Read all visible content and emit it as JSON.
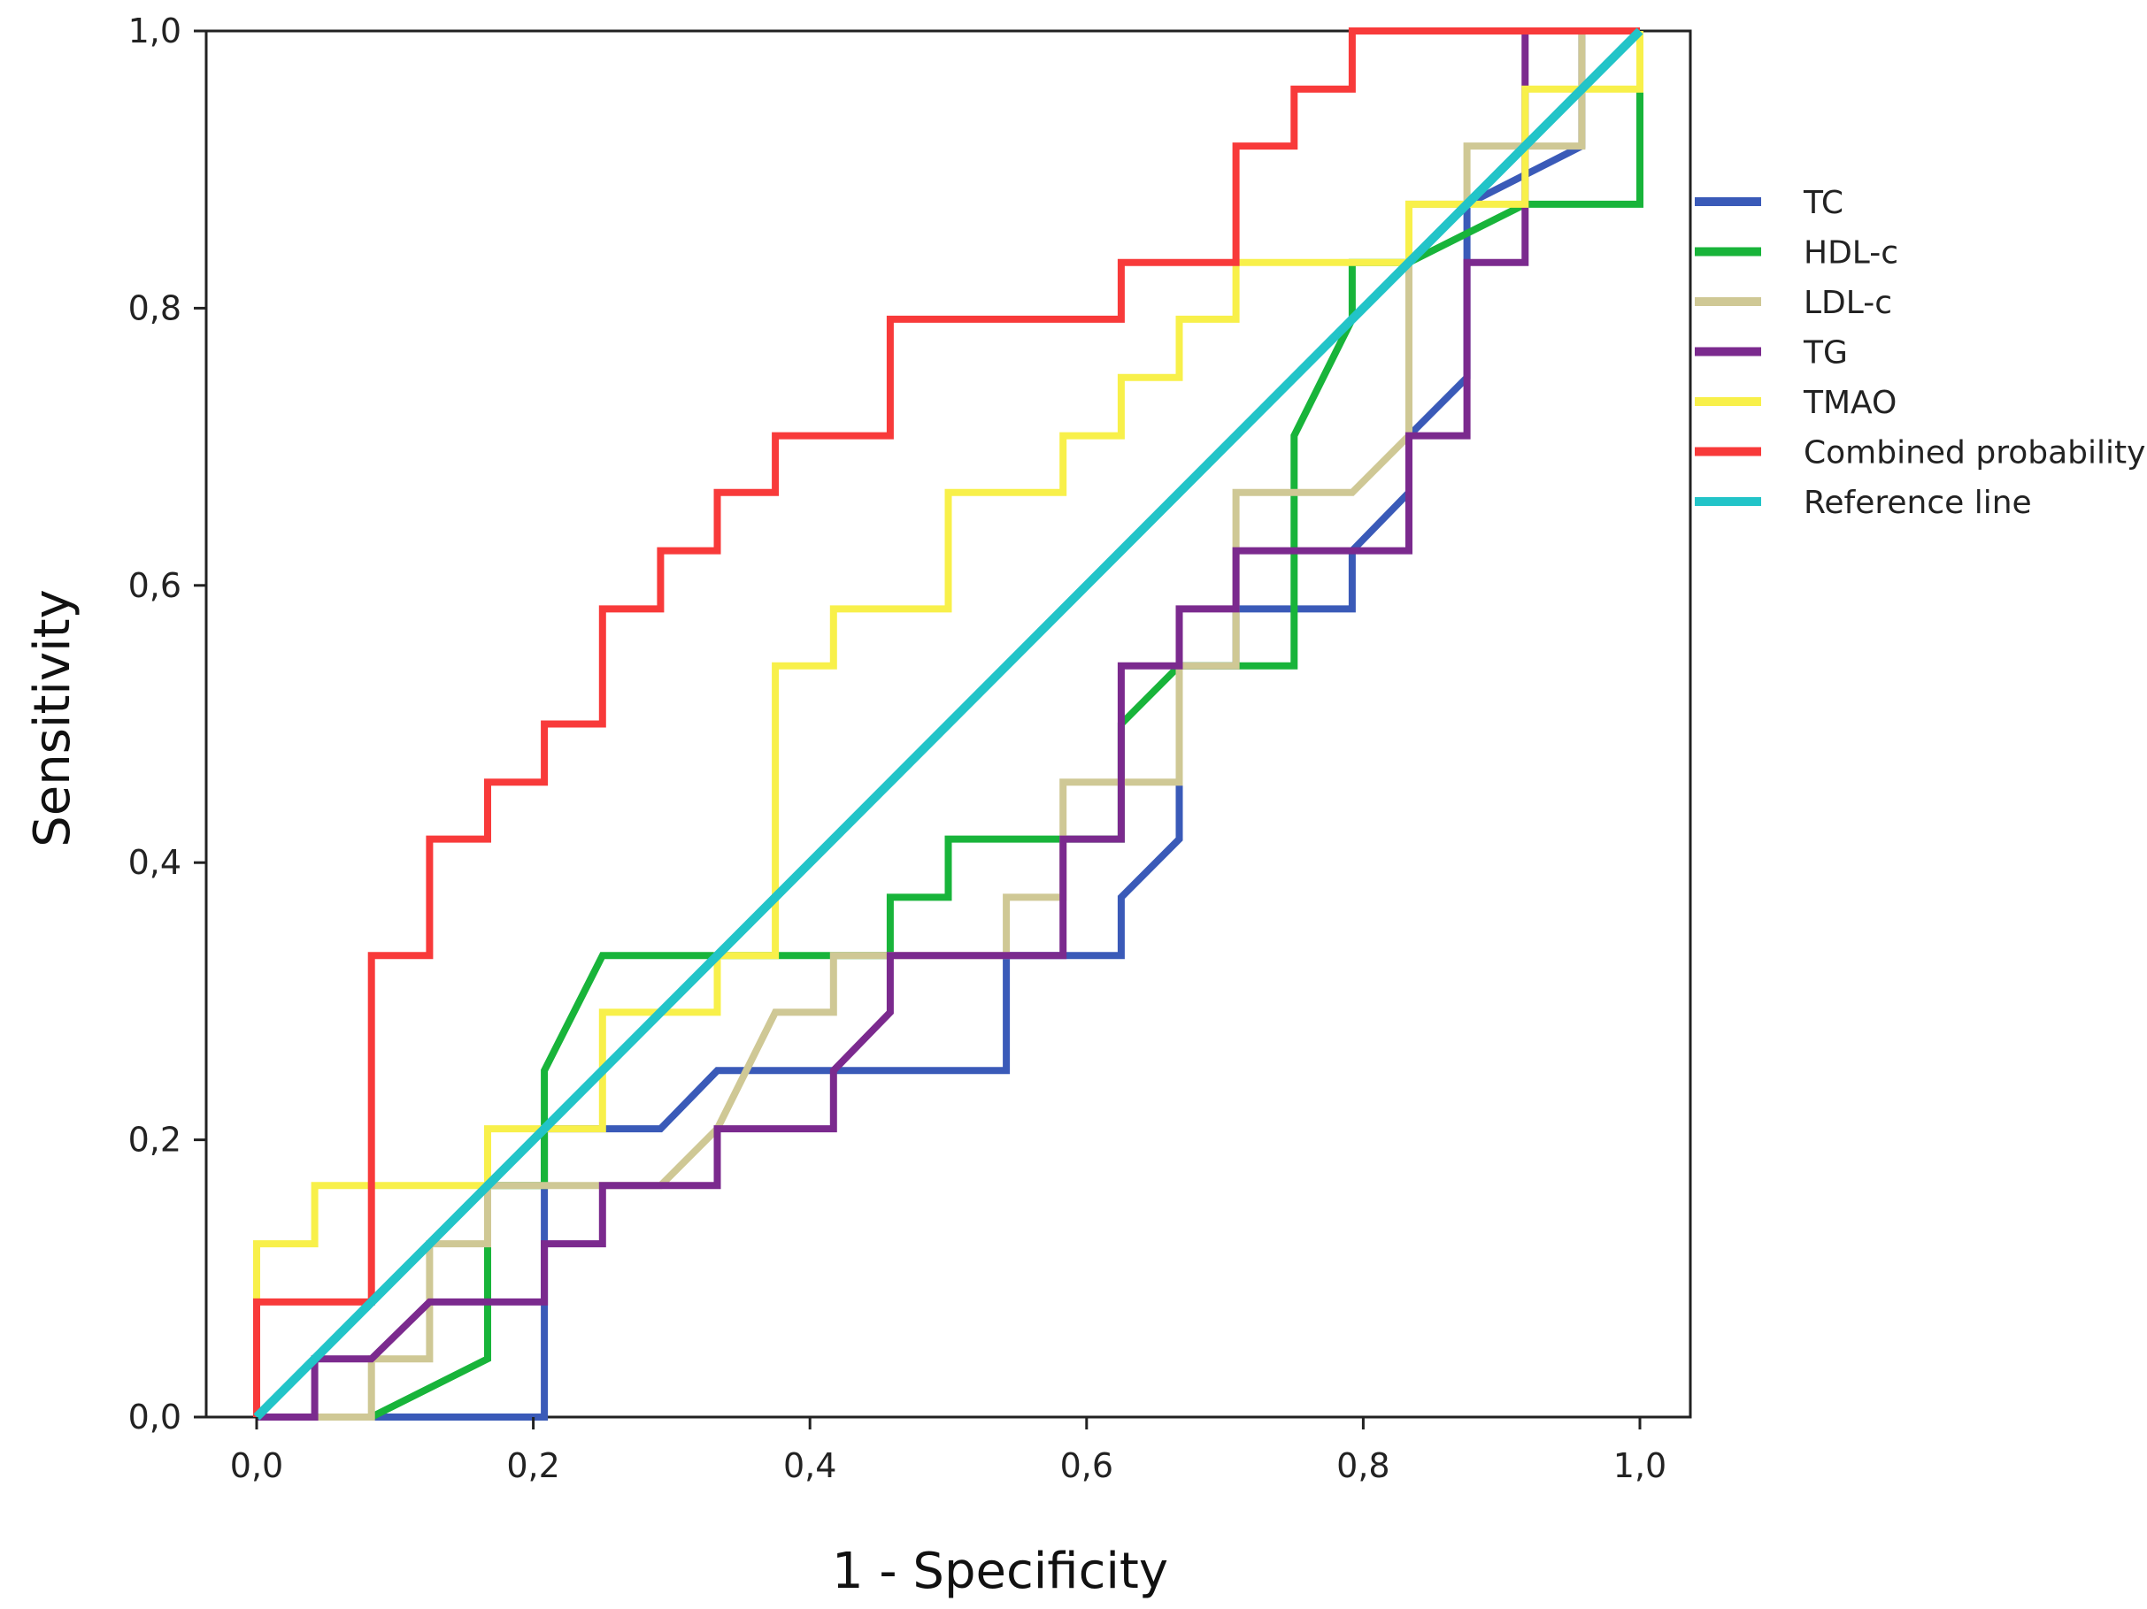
{
  "chart_data": {
    "type": "line",
    "title": "",
    "xlabel": "1 - Specificity",
    "ylabel": "Sensitivity",
    "xlim": [
      0,
      1
    ],
    "ylim": [
      0,
      1
    ],
    "xticks": [
      "0,0",
      "0,2",
      "0,4",
      "0,6",
      "0,8",
      "1,0"
    ],
    "yticks": [
      "0,0",
      "0,2",
      "0,4",
      "0,6",
      "0,8",
      "1,0"
    ],
    "tick_values": [
      0,
      0.2,
      0.4,
      0.6,
      0.8,
      1.0
    ],
    "legend_position": "right",
    "series": [
      {
        "name": "TC",
        "color": "#3a5ab8",
        "points": [
          [
            0,
            0
          ],
          [
            0.208,
            0
          ],
          [
            0.208,
            0.208
          ],
          [
            0.25,
            0.208
          ],
          [
            0.25,
            0.208
          ],
          [
            0.292,
            0.208
          ],
          [
            0.333,
            0.25
          ],
          [
            0.542,
            0.25
          ],
          [
            0.542,
            0.333
          ],
          [
            0.625,
            0.333
          ],
          [
            0.625,
            0.375
          ],
          [
            0.667,
            0.417
          ],
          [
            0.667,
            0.542
          ],
          [
            0.708,
            0.542
          ],
          [
            0.708,
            0.583
          ],
          [
            0.792,
            0.583
          ],
          [
            0.792,
            0.625
          ],
          [
            0.833,
            0.667
          ],
          [
            0.833,
            0.708
          ],
          [
            0.875,
            0.75
          ],
          [
            0.875,
            0.875
          ],
          [
            0.958,
            0.917
          ],
          [
            0.958,
            1.0
          ],
          [
            1.0,
            1.0
          ]
        ]
      },
      {
        "name": "HDL-c",
        "color": "#18b43a",
        "points": [
          [
            0,
            0
          ],
          [
            0.083,
            0
          ],
          [
            0.167,
            0.042
          ],
          [
            0.167,
            0.167
          ],
          [
            0.208,
            0.167
          ],
          [
            0.208,
            0.25
          ],
          [
            0.25,
            0.333
          ],
          [
            0.458,
            0.333
          ],
          [
            0.458,
            0.375
          ],
          [
            0.5,
            0.375
          ],
          [
            0.5,
            0.417
          ],
          [
            0.625,
            0.417
          ],
          [
            0.625,
            0.5
          ],
          [
            0.667,
            0.542
          ],
          [
            0.708,
            0.542
          ],
          [
            0.75,
            0.542
          ],
          [
            0.75,
            0.708
          ],
          [
            0.792,
            0.792
          ],
          [
            0.792,
            0.833
          ],
          [
            0.833,
            0.833
          ],
          [
            0.917,
            0.875
          ],
          [
            0.958,
            0.875
          ],
          [
            1.0,
            0.875
          ],
          [
            1.0,
            1.0
          ]
        ]
      },
      {
        "name": "LDL-c",
        "color": "#cfc895",
        "points": [
          [
            0,
            0
          ],
          [
            0.083,
            0
          ],
          [
            0.083,
            0.042
          ],
          [
            0.125,
            0.042
          ],
          [
            0.125,
            0.125
          ],
          [
            0.167,
            0.125
          ],
          [
            0.167,
            0.167
          ],
          [
            0.292,
            0.167
          ],
          [
            0.333,
            0.208
          ],
          [
            0.375,
            0.292
          ],
          [
            0.417,
            0.292
          ],
          [
            0.417,
            0.333
          ],
          [
            0.542,
            0.333
          ],
          [
            0.542,
            0.375
          ],
          [
            0.583,
            0.375
          ],
          [
            0.583,
            0.458
          ],
          [
            0.667,
            0.458
          ],
          [
            0.667,
            0.542
          ],
          [
            0.708,
            0.542
          ],
          [
            0.708,
            0.667
          ],
          [
            0.792,
            0.667
          ],
          [
            0.833,
            0.708
          ],
          [
            0.833,
            0.875
          ],
          [
            0.875,
            0.875
          ],
          [
            0.875,
            0.917
          ],
          [
            0.958,
            0.917
          ],
          [
            0.958,
            1.0
          ],
          [
            1.0,
            1.0
          ]
        ]
      },
      {
        "name": "TG",
        "color": "#7b2a8e",
        "points": [
          [
            0,
            0
          ],
          [
            0.042,
            0
          ],
          [
            0.042,
            0.042
          ],
          [
            0.083,
            0.042
          ],
          [
            0.125,
            0.083
          ],
          [
            0.208,
            0.083
          ],
          [
            0.208,
            0.125
          ],
          [
            0.25,
            0.125
          ],
          [
            0.25,
            0.167
          ],
          [
            0.333,
            0.167
          ],
          [
            0.333,
            0.208
          ],
          [
            0.417,
            0.208
          ],
          [
            0.417,
            0.25
          ],
          [
            0.458,
            0.292
          ],
          [
            0.458,
            0.333
          ],
          [
            0.583,
            0.333
          ],
          [
            0.583,
            0.417
          ],
          [
            0.625,
            0.417
          ],
          [
            0.625,
            0.542
          ],
          [
            0.667,
            0.542
          ],
          [
            0.667,
            0.583
          ],
          [
            0.708,
            0.583
          ],
          [
            0.708,
            0.625
          ],
          [
            0.833,
            0.625
          ],
          [
            0.833,
            0.708
          ],
          [
            0.875,
            0.708
          ],
          [
            0.875,
            0.833
          ],
          [
            0.917,
            0.833
          ],
          [
            0.917,
            1.0
          ],
          [
            1.0,
            1.0
          ]
        ]
      },
      {
        "name": "TMAO",
        "color": "#f8f04a",
        "points": [
          [
            0,
            0
          ],
          [
            0,
            0.125
          ],
          [
            0.042,
            0.125
          ],
          [
            0.042,
            0.167
          ],
          [
            0.167,
            0.167
          ],
          [
            0.167,
            0.208
          ],
          [
            0.25,
            0.208
          ],
          [
            0.25,
            0.292
          ],
          [
            0.333,
            0.292
          ],
          [
            0.333,
            0.333
          ],
          [
            0.375,
            0.333
          ],
          [
            0.375,
            0.542
          ],
          [
            0.417,
            0.542
          ],
          [
            0.417,
            0.583
          ],
          [
            0.5,
            0.583
          ],
          [
            0.5,
            0.667
          ],
          [
            0.583,
            0.667
          ],
          [
            0.583,
            0.708
          ],
          [
            0.625,
            0.708
          ],
          [
            0.625,
            0.75
          ],
          [
            0.667,
            0.75
          ],
          [
            0.667,
            0.792
          ],
          [
            0.708,
            0.792
          ],
          [
            0.708,
            0.833
          ],
          [
            0.833,
            0.833
          ],
          [
            0.833,
            0.875
          ],
          [
            0.917,
            0.875
          ],
          [
            0.917,
            0.958
          ],
          [
            1.0,
            0.958
          ],
          [
            1.0,
            1.0
          ]
        ]
      },
      {
        "name": "Combined probability",
        "color": "#f83a3a",
        "points": [
          [
            0,
            0
          ],
          [
            0,
            0.083
          ],
          [
            0.083,
            0.083
          ],
          [
            0.083,
            0.333
          ],
          [
            0.125,
            0.333
          ],
          [
            0.125,
            0.417
          ],
          [
            0.167,
            0.417
          ],
          [
            0.167,
            0.458
          ],
          [
            0.208,
            0.458
          ],
          [
            0.208,
            0.5
          ],
          [
            0.25,
            0.5
          ],
          [
            0.25,
            0.583
          ],
          [
            0.292,
            0.583
          ],
          [
            0.292,
            0.625
          ],
          [
            0.333,
            0.625
          ],
          [
            0.333,
            0.667
          ],
          [
            0.375,
            0.667
          ],
          [
            0.375,
            0.708
          ],
          [
            0.458,
            0.708
          ],
          [
            0.458,
            0.792
          ],
          [
            0.625,
            0.792
          ],
          [
            0.625,
            0.833
          ],
          [
            0.708,
            0.833
          ],
          [
            0.708,
            0.917
          ],
          [
            0.75,
            0.917
          ],
          [
            0.75,
            0.958
          ],
          [
            0.792,
            0.958
          ],
          [
            0.792,
            1.0
          ],
          [
            1.0,
            1.0
          ]
        ]
      },
      {
        "name": "Reference line",
        "color": "#22c4c8",
        "points": [
          [
            0,
            0
          ],
          [
            1,
            1
          ]
        ]
      }
    ]
  }
}
